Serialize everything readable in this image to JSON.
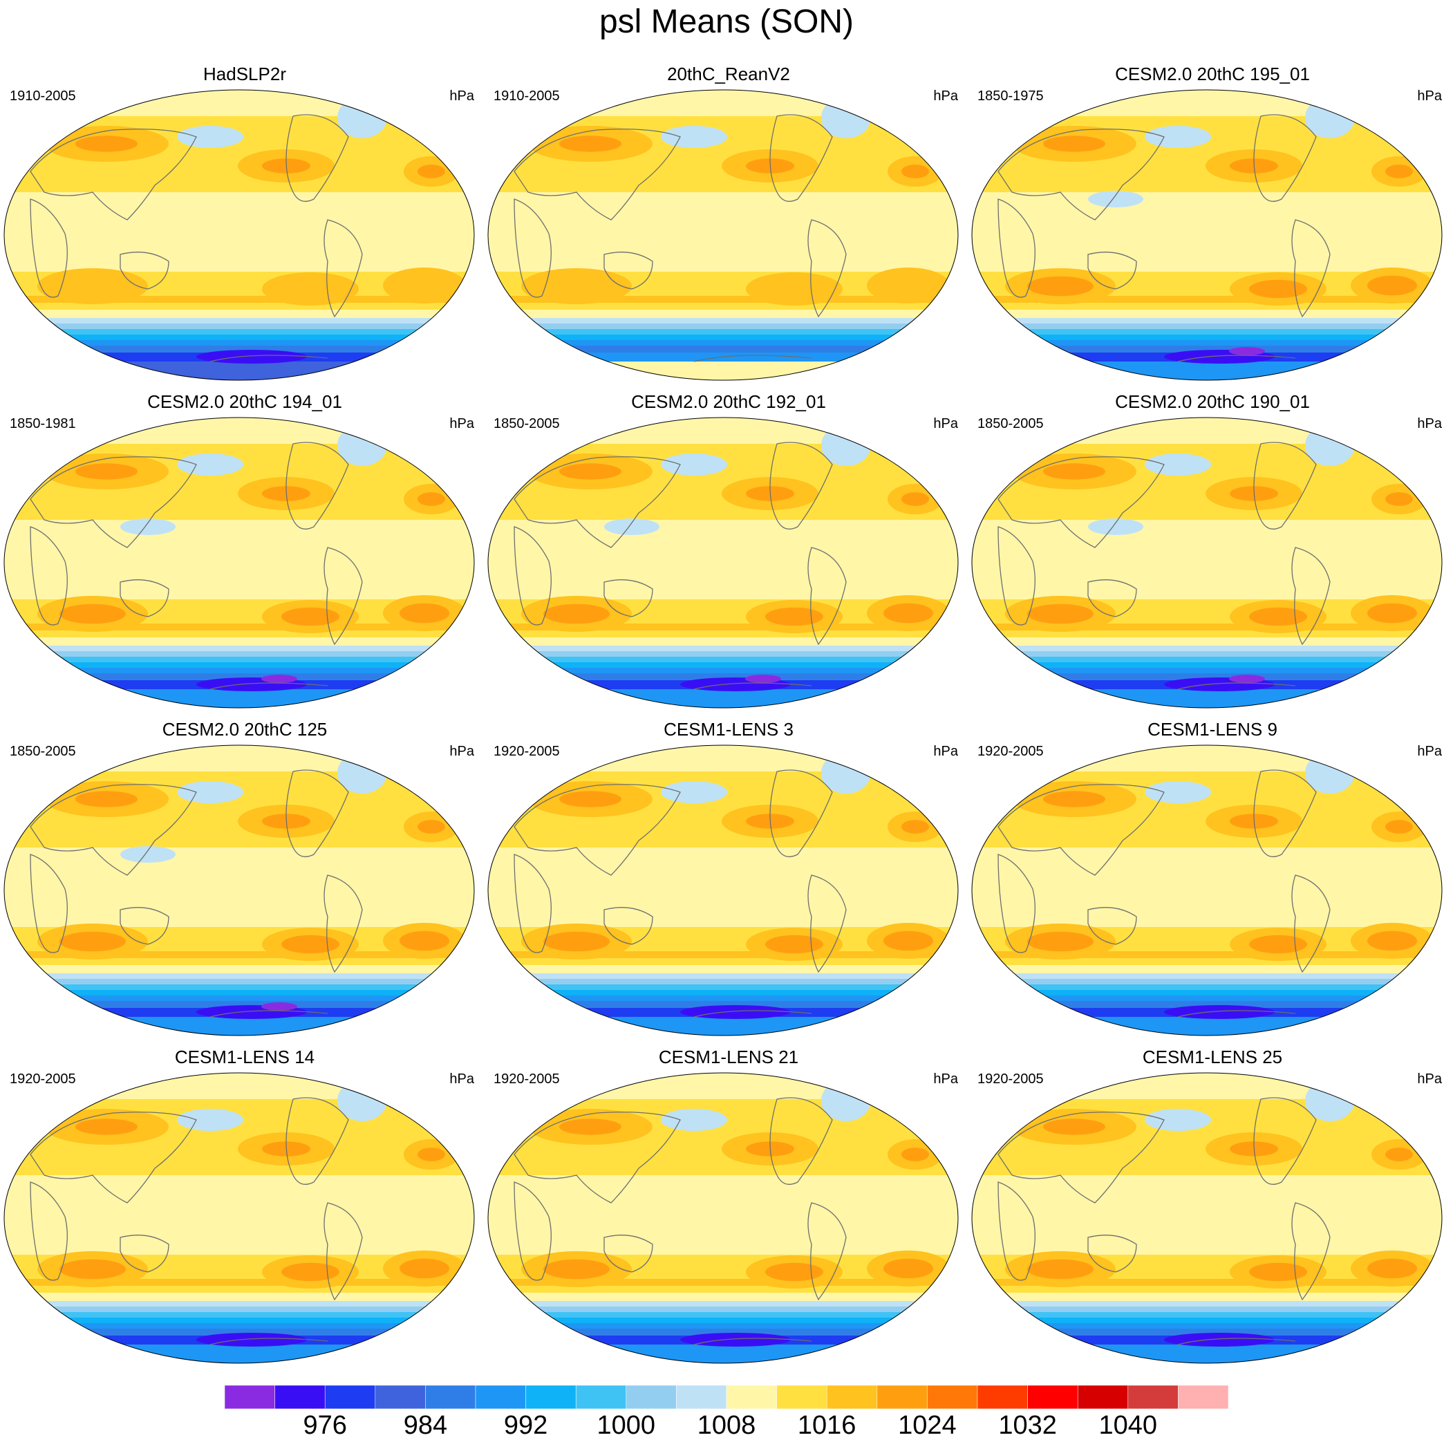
{
  "title": "psl Means (SON)",
  "panels": [
    {
      "title": "HadSLP2r",
      "period": "1910-2005",
      "unit": "hPa",
      "variant": "obs"
    },
    {
      "title": "20thC_ReanV2",
      "period": "1910-2005",
      "unit": "hPa",
      "variant": "rean"
    },
    {
      "title": "CESM2.0 20thC 195_01",
      "period": "1850-1975",
      "unit": "hPa",
      "variant": "cesm2"
    },
    {
      "title": "CESM2.0 20thC 194_01",
      "period": "1850-1981",
      "unit": "hPa",
      "variant": "cesm2"
    },
    {
      "title": "CESM2.0 20thC 192_01",
      "period": "1850-2005",
      "unit": "hPa",
      "variant": "cesm2"
    },
    {
      "title": "CESM2.0 20thC 190_01",
      "period": "1850-2005",
      "unit": "hPa",
      "variant": "cesm2"
    },
    {
      "title": "CESM2.0 20thC 125",
      "period": "1850-2005",
      "unit": "hPa",
      "variant": "cesm2"
    },
    {
      "title": "CESM1-LENS 3",
      "period": "1920-2005",
      "unit": "hPa",
      "variant": "lens"
    },
    {
      "title": "CESM1-LENS 9",
      "period": "1920-2005",
      "unit": "hPa",
      "variant": "lens"
    },
    {
      "title": "CESM1-LENS 14",
      "period": "1920-2005",
      "unit": "hPa",
      "variant": "lens"
    },
    {
      "title": "CESM1-LENS 21",
      "period": "1920-2005",
      "unit": "hPa",
      "variant": "lens"
    },
    {
      "title": "CESM1-LENS 25",
      "period": "1920-2005",
      "unit": "hPa",
      "variant": "lens"
    }
  ],
  "colorbar": {
    "colors": [
      "#8a2be2",
      "#3a0ef5",
      "#1e3cf2",
      "#3f63dd",
      "#2f7ee8",
      "#1e96f5",
      "#0fb2f7",
      "#3fc3f5",
      "#93cef0",
      "#bfe1f6",
      "#fff6a8",
      "#ffe040",
      "#ffc21e",
      "#ff9f10",
      "#ff7808",
      "#ff3c00",
      "#ff0000",
      "#d60000",
      "#d43c3c",
      "#ffb0b0"
    ],
    "labels": [
      "976",
      "984",
      "992",
      "1000",
      "1008",
      "1016",
      "1024",
      "1032",
      "1040"
    ],
    "label_after_box": [
      2,
      4,
      6,
      8,
      10,
      12,
      14,
      16,
      18
    ]
  }
}
